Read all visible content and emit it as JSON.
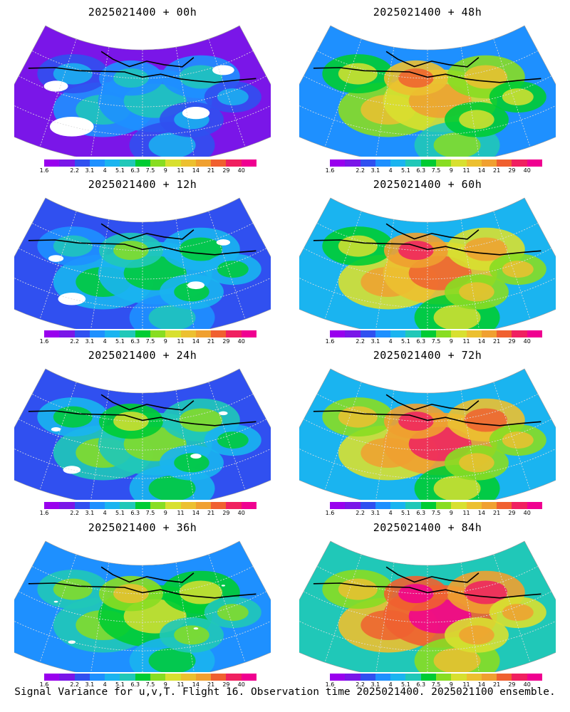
{
  "figure": {
    "caption": "Signal Variance for u,v,T. Flight 16. Observation time 2025021400. 2025021100 ensemble."
  },
  "colorbar": {
    "levels": [
      "1.6",
      "2.2",
      "3.1",
      "4",
      "5.1",
      "6.3",
      "7.5",
      "9",
      "11",
      "14",
      "21",
      "29",
      "40"
    ],
    "colors": [
      "#9900ee",
      "#7a16e8",
      "#3050f0",
      "#1e90ff",
      "#1ab4f0",
      "#20c8b8",
      "#00cc33",
      "#88dd22",
      "#d8e030",
      "#ecc030",
      "#f0a030",
      "#f06030",
      "#f02060",
      "#f00090"
    ]
  },
  "panels": [
    {
      "title": "2025021400 + 00h",
      "lead_hours": 0,
      "intensity": 0.15
    },
    {
      "title": "2025021400 + 12h",
      "lead_hours": 12,
      "intensity": 0.28
    },
    {
      "title": "2025021400 + 24h",
      "lead_hours": 24,
      "intensity": 0.36
    },
    {
      "title": "2025021400 + 36h",
      "lead_hours": 36,
      "intensity": 0.44
    },
    {
      "title": "2025021400 + 48h",
      "lead_hours": 48,
      "intensity": 0.58
    },
    {
      "title": "2025021400 + 60h",
      "lead_hours": 60,
      "intensity": 0.66
    },
    {
      "title": "2025021400 + 72h",
      "lead_hours": 72,
      "intensity": 0.72
    },
    {
      "title": "2025021400 + 84h",
      "lead_hours": 84,
      "intensity": 0.8
    }
  ]
}
